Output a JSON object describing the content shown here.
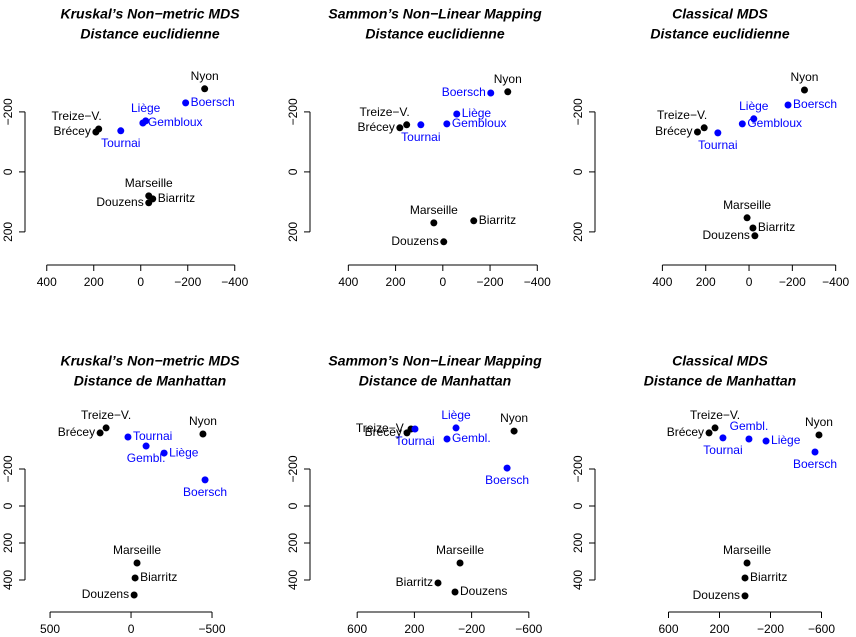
{
  "chart_data": [
    {
      "type": "scatter",
      "title": "Kruskal’s Non−metric MDS",
      "subtitle": "Distance euclidienne",
      "labels": [
        "Nyon",
        "Boersch",
        "Liège",
        "Gembloux",
        "Treize−V.",
        "Brécey",
        "Tournai",
        "Marseille",
        "Biarritz",
        "Douzens"
      ],
      "x": [
        -272,
        -191,
        -21,
        -9,
        179,
        191,
        85,
        -34,
        -51,
        -34
      ],
      "y": [
        -277,
        -230,
        -170,
        -163,
        -143,
        -133,
        -137,
        80,
        90,
        103
      ],
      "colors": [
        "#000000",
        "#0000ff",
        "#0000ff",
        "#0000ff",
        "#000000",
        "#000000",
        "#0000ff",
        "#000000",
        "#000000",
        "#000000"
      ],
      "xlim": [
        450,
        -550
      ],
      "ylim": [
        -323,
        277
      ],
      "xticks": [
        400,
        200,
        0,
        {
          "value": -200,
          "label": "−200"
        },
        {
          "value": -400,
          "label": "−400"
        }
      ],
      "yticks": [
        {
          "value": -200,
          "label": "−200"
        },
        0,
        200
      ]
    },
    {
      "type": "scatter",
      "title": "Sammon’s Non−Linear Mapping",
      "subtitle": "Distance euclidienne",
      "labels": [
        "Nyon",
        "Boersch",
        "Liège",
        "Gembloux",
        "Treize−V.",
        "Brécey",
        "Tournai",
        "Marseille",
        "Biarritz",
        "Douzens"
      ],
      "x": [
        -275,
        -203,
        -59,
        -17,
        153,
        182,
        93,
        38,
        -131,
        -4
      ],
      "y": [
        -267,
        -263,
        -193,
        -160,
        -157,
        -147,
        -157,
        170,
        163,
        233
      ],
      "colors": [
        "#000000",
        "#0000ff",
        "#0000ff",
        "#0000ff",
        "#000000",
        "#000000",
        "#0000ff",
        "#000000",
        "#000000",
        "#000000"
      ],
      "xlim": [
        520,
        -475
      ],
      "ylim": [
        -323,
        277
      ],
      "xticks": [
        400,
        200,
        0,
        {
          "value": -200,
          "label": "−200"
        },
        {
          "value": -400,
          "label": "−400"
        }
      ],
      "yticks": [
        {
          "value": -200,
          "label": "−200"
        },
        0,
        200
      ]
    },
    {
      "type": "scatter",
      "title": "Classical MDS",
      "subtitle": "Distance euclidienne",
      "labels": [
        "Nyon",
        "Boersch",
        "Liège",
        "Gembloux",
        "Treize−V.",
        "Brécey",
        "Tournai",
        "Marseille",
        "Biarritz",
        "Douzens"
      ],
      "x": [
        -256,
        -180,
        -22,
        31,
        207,
        238,
        144,
        9,
        -18,
        -27
      ],
      "y": [
        -273,
        -223,
        -177,
        -160,
        -147,
        -133,
        -130,
        153,
        187,
        213
      ],
      "colors": [
        "#000000",
        "#0000ff",
        "#0000ff",
        "#0000ff",
        "#000000",
        "#000000",
        "#0000ff",
        "#000000",
        "#000000",
        "#000000"
      ],
      "xlim": [
        665,
        -420
      ],
      "ylim": [
        -323,
        277
      ],
      "xticks": [
        400,
        200,
        0,
        {
          "value": -200,
          "label": "−200"
        },
        {
          "value": -400,
          "label": "−400"
        }
      ],
      "yticks": [
        {
          "value": -200,
          "label": "−200"
        },
        0,
        200
      ]
    },
    {
      "type": "scatter",
      "title": "Kruskal’s Non−metric MDS",
      "subtitle": "Distance de Manhattan",
      "labels": [
        "Nyon",
        "Boersch",
        "Liège",
        "Gembl.",
        "Treize−V.",
        "Brécey",
        "Tournai",
        "Marseille",
        "Biarritz",
        "Douzens"
      ],
      "x": [
        -444,
        -457,
        -204,
        -93,
        154,
        191,
        19,
        -37,
        -25,
        -19
      ],
      "y": [
        -389,
        -141,
        -286,
        -324,
        -422,
        -395,
        -373,
        308,
        389,
        481
      ],
      "colors": [
        "#000000",
        "#0000ff",
        "#0000ff",
        "#0000ff",
        "#000000",
        "#000000",
        "#0000ff",
        "#000000",
        "#000000",
        "#000000"
      ],
      "xlim": [
        593,
        -858
      ],
      "ylim": [
        -454,
        519
      ],
      "xticks": [
        500,
        0,
        {
          "value": -500,
          "label": "−500"
        }
      ],
      "yticks": [
        {
          "value": -200,
          "label": "−200"
        },
        0,
        200,
        400
      ]
    },
    {
      "type": "scatter",
      "title": "Sammon’s Non−Linear Mapping",
      "subtitle": "Distance de Manhattan",
      "labels": [
        "Nyon",
        "Boersch",
        "Liège",
        "Gembl.",
        "Treize−V.",
        "Brécey",
        "Tournai",
        "Marseille",
        "Biarritz",
        "Douzens"
      ],
      "x": [
        -497,
        -448,
        -91,
        -28,
        224,
        252,
        196,
        -119,
        35,
        -84
      ],
      "y": [
        -405,
        -205,
        -422,
        -362,
        -416,
        -395,
        -416,
        308,
        416,
        465
      ],
      "colors": [
        "#000000",
        "#0000ff",
        "#0000ff",
        "#0000ff",
        "#000000",
        "#000000",
        "#0000ff",
        "#000000",
        "#000000",
        "#000000"
      ],
      "xlim": [
        860,
        -783
      ],
      "ylim": [
        -454,
        519
      ],
      "xticks": [
        600,
        200,
        {
          "value": -200,
          "label": "−200"
        },
        {
          "value": -600,
          "label": "−600"
        }
      ],
      "yticks": [
        {
          "value": -200,
          "label": "−200"
        },
        0,
        200,
        400
      ]
    },
    {
      "type": "scatter",
      "title": "Classical MDS",
      "subtitle": "Distance de Manhattan",
      "labels": [
        "Nyon",
        "Boersch",
        "Liège",
        "Gembl.",
        "Treize−V.",
        "Brécey",
        "Tournai",
        "Marseille",
        "Biarritz",
        "Douzens"
      ],
      "x": [
        -580,
        -549,
        -165,
        -31,
        235,
        282,
        173,
        -16,
        0,
        0
      ],
      "y": [
        -384,
        -292,
        -351,
        -362,
        -422,
        -395,
        -368,
        308,
        389,
        486
      ],
      "colors": [
        "#000000",
        "#0000ff",
        "#0000ff",
        "#0000ff",
        "#000000",
        "#000000",
        "#0000ff",
        "#000000",
        "#000000",
        "#000000"
      ],
      "xlim": [
        1098,
        -745
      ],
      "ylim": [
        -454,
        519
      ],
      "xticks": [
        600,
        200,
        {
          "value": -200,
          "label": "−200"
        },
        {
          "value": -600,
          "label": "−600"
        }
      ],
      "yticks": [
        {
          "value": -200,
          "label": "−200"
        },
        0,
        200,
        400
      ]
    }
  ]
}
